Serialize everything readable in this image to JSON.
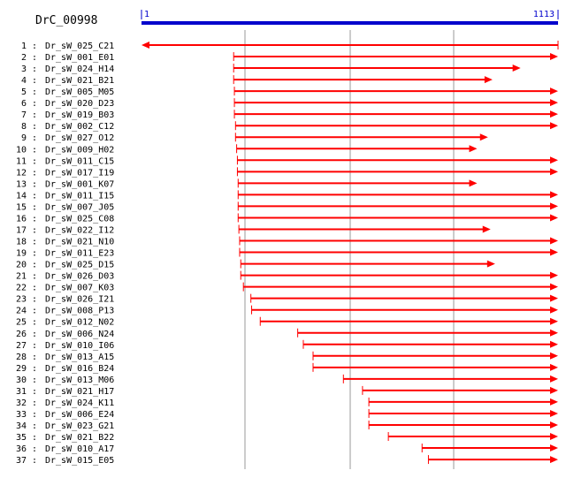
{
  "title": "DrC_00998",
  "scale": {
    "start_label": "1",
    "end_label": "1113",
    "min": 1,
    "max": 1113,
    "color": "#0000cc"
  },
  "arrow_color": "#ff0000",
  "gridline_color": "#999999",
  "clones": [
    {
      "index": "1",
      "name": "Dr_sW_025_C21",
      "start": 1,
      "end": 1113,
      "direction": "reverse"
    },
    {
      "index": "2",
      "name": "Dr_sW_001_E01",
      "start": 247,
      "end": 1113,
      "direction": "forward"
    },
    {
      "index": "3",
      "name": "Dr_sW_024_H14",
      "start": 247,
      "end": 1013,
      "direction": "forward"
    },
    {
      "index": "4",
      "name": "Dr_sW_021_B21",
      "start": 247,
      "end": 938,
      "direction": "forward"
    },
    {
      "index": "5",
      "name": "Dr_sW_005_M05",
      "start": 249,
      "end": 1113,
      "direction": "forward"
    },
    {
      "index": "6",
      "name": "Dr_sW_020_D23",
      "start": 249,
      "end": 1113,
      "direction": "forward"
    },
    {
      "index": "7",
      "name": "Dr_sW_019_B03",
      "start": 249,
      "end": 1113,
      "direction": "forward"
    },
    {
      "index": "8",
      "name": "Dr_sW_002_C12",
      "start": 252,
      "end": 1113,
      "direction": "forward"
    },
    {
      "index": "9",
      "name": "Dr_sW_027_O12",
      "start": 252,
      "end": 926,
      "direction": "forward"
    },
    {
      "index": "10",
      "name": "Dr_sW_009_H02",
      "start": 255,
      "end": 897,
      "direction": "forward"
    },
    {
      "index": "11",
      "name": "Dr_sW_011_C15",
      "start": 257,
      "end": 1113,
      "direction": "forward"
    },
    {
      "index": "12",
      "name": "Dr_sW_017_I19",
      "start": 257,
      "end": 1113,
      "direction": "forward"
    },
    {
      "index": "13",
      "name": "Dr_sW_001_K07",
      "start": 259,
      "end": 897,
      "direction": "forward"
    },
    {
      "index": "14",
      "name": "Dr_sW_011_I15",
      "start": 259,
      "end": 1113,
      "direction": "forward"
    },
    {
      "index": "15",
      "name": "Dr_sW_007_J05",
      "start": 259,
      "end": 1113,
      "direction": "forward"
    },
    {
      "index": "16",
      "name": "Dr_sW_025_C08",
      "start": 259,
      "end": 1113,
      "direction": "forward"
    },
    {
      "index": "17",
      "name": "Dr_sW_022_I12",
      "start": 261,
      "end": 933,
      "direction": "forward"
    },
    {
      "index": "18",
      "name": "Dr_sW_021_N10",
      "start": 263,
      "end": 1113,
      "direction": "forward"
    },
    {
      "index": "19",
      "name": "Dr_sW_011_E23",
      "start": 263,
      "end": 1113,
      "direction": "forward"
    },
    {
      "index": "20",
      "name": "Dr_sW_025_D15",
      "start": 266,
      "end": 945,
      "direction": "forward"
    },
    {
      "index": "21",
      "name": "Dr_sW_026_D03",
      "start": 266,
      "end": 1113,
      "direction": "forward"
    },
    {
      "index": "22",
      "name": "Dr_sW_007_K03",
      "start": 273,
      "end": 1113,
      "direction": "forward"
    },
    {
      "index": "23",
      "name": "Dr_sW_026_I21",
      "start": 293,
      "end": 1113,
      "direction": "forward"
    },
    {
      "index": "24",
      "name": "Dr_sW_008_P13",
      "start": 295,
      "end": 1113,
      "direction": "forward"
    },
    {
      "index": "25",
      "name": "Dr_sW_012_N02",
      "start": 318,
      "end": 1113,
      "direction": "forward"
    },
    {
      "index": "26",
      "name": "Dr_sW_006_N24",
      "start": 418,
      "end": 1113,
      "direction": "forward"
    },
    {
      "index": "27",
      "name": "Dr_sW_010_I06",
      "start": 433,
      "end": 1113,
      "direction": "forward"
    },
    {
      "index": "28",
      "name": "Dr_sW_013_A15",
      "start": 459,
      "end": 1113,
      "direction": "forward"
    },
    {
      "index": "29",
      "name": "Dr_sW_016_B24",
      "start": 459,
      "end": 1113,
      "direction": "forward"
    },
    {
      "index": "30",
      "name": "Dr_sW_013_M06",
      "start": 540,
      "end": 1113,
      "direction": "forward"
    },
    {
      "index": "31",
      "name": "Dr_sW_021_H17",
      "start": 591,
      "end": 1113,
      "direction": "forward"
    },
    {
      "index": "32",
      "name": "Dr_sW_024_K11",
      "start": 608,
      "end": 1113,
      "direction": "forward"
    },
    {
      "index": "33",
      "name": "Dr_sW_006_E24",
      "start": 608,
      "end": 1113,
      "direction": "forward"
    },
    {
      "index": "34",
      "name": "Dr_sW_023_G21",
      "start": 608,
      "end": 1113,
      "direction": "forward"
    },
    {
      "index": "35",
      "name": "Dr_sW_021_B22",
      "start": 660,
      "end": 1113,
      "direction": "forward"
    },
    {
      "index": "36",
      "name": "Dr_sW_010_A17",
      "start": 750,
      "end": 1113,
      "direction": "forward"
    },
    {
      "index": "37",
      "name": "Dr_sW_015_E05",
      "start": 767,
      "end": 1113,
      "direction": "forward"
    }
  ]
}
